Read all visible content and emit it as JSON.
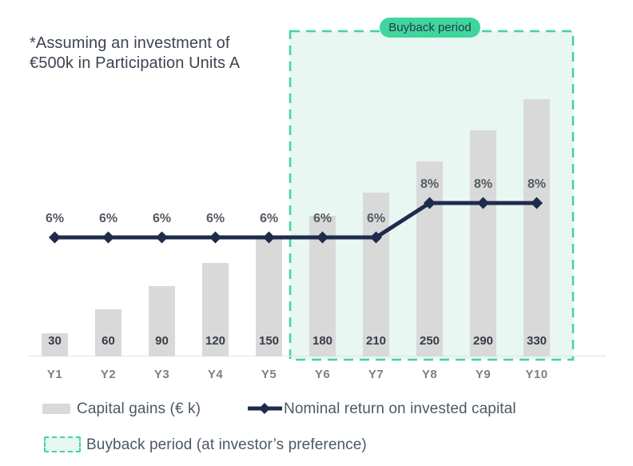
{
  "note": {
    "line1": "*Assuming an investment of",
    "line2": "€500k in Participation Units A"
  },
  "chart_data": {
    "type": "bar",
    "title": "",
    "categories": [
      "Y1",
      "Y2",
      "Y3",
      "Y4",
      "Y5",
      "Y6",
      "Y7",
      "Y8",
      "Y9",
      "Y10"
    ],
    "series": [
      {
        "name": "Capital gains (€ k)",
        "type": "bar",
        "values": [
          30,
          60,
          90,
          120,
          150,
          180,
          210,
          250,
          290,
          330
        ],
        "value_labels": [
          "30",
          "60",
          "90",
          "120",
          "150",
          "180",
          "210",
          "250",
          "290",
          "330"
        ]
      },
      {
        "name": "Nominal return on invested capital",
        "type": "line",
        "unit": "%",
        "values": [
          6,
          6,
          6,
          6,
          6,
          6,
          6,
          8,
          8,
          8
        ],
        "point_labels": [
          "6%",
          "6%",
          "6%",
          "6%",
          "6%",
          "6%",
          "6%",
          "8%",
          "8%",
          "8%"
        ]
      }
    ],
    "highlight_region": {
      "label": "Buyback period",
      "from_category": "Y6",
      "to_category": "Y10"
    },
    "xlabel": "",
    "ylabel": "",
    "ylim": [
      0,
      360
    ],
    "grid": false,
    "legend_position": "bottom"
  },
  "badge_label": "Buyback period",
  "legend": {
    "capital_gains_label": "Capital gains (€ k)",
    "nominal_return_label": "Nominal return on invested capital",
    "buyback_label": "Buyback period (at investor’s preference)"
  },
  "colors": {
    "bar_fill": "#d9d9d9",
    "line_stroke": "#1f2b4d",
    "accent_green": "#3fd69e",
    "region_fill": "#e8f7f1",
    "badge_text": "#2b3746",
    "note_text": "#3d4552",
    "pct_label_text": "#555b63",
    "bar_value_text": "#373d47",
    "x_label_text": "#7b8188",
    "legend_text": "#4d5865"
  }
}
